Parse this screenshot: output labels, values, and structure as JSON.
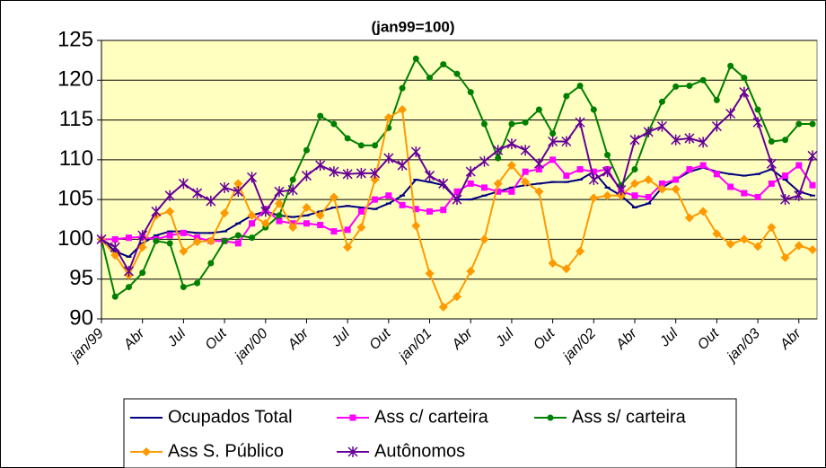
{
  "chart_data": {
    "type": "line",
    "subtitle": "(jan99=100)",
    "categories": [
      "jan/99",
      null,
      null,
      "Abr",
      null,
      null,
      "Jul",
      null,
      null,
      "Out",
      null,
      null,
      "jan/00",
      null,
      null,
      "Abr",
      null,
      null,
      "Jul",
      null,
      null,
      "Out",
      null,
      null,
      "jan/01",
      null,
      null,
      "Abr",
      null,
      null,
      "Jul",
      null,
      null,
      "Out",
      null,
      null,
      "jan/02",
      null,
      null,
      "Abr",
      null,
      null,
      "Jul",
      null,
      null,
      "Out",
      null,
      null,
      "jan/03",
      null,
      null,
      "Abr",
      null
    ],
    "ylim": [
      90,
      125
    ],
    "yticks": [
      90,
      95,
      100,
      105,
      110,
      115,
      120,
      125
    ],
    "grid": true,
    "series": [
      {
        "name": "Ocupados Total",
        "color": "#000080",
        "marker": "dash",
        "values": [
          100,
          98.5,
          97.8,
          99.5,
          100.5,
          101,
          101,
          100.8,
          100.8,
          101,
          102,
          103,
          103.5,
          103,
          102.8,
          103,
          103.5,
          104,
          104.2,
          104,
          103.8,
          104.5,
          105.5,
          107.5,
          107.2,
          106.8,
          105,
          105,
          105.5,
          106,
          106.5,
          106.8,
          107,
          107.2,
          107.2,
          107.5,
          108.5,
          106.5,
          105.5,
          104,
          104.5,
          106.5,
          107.5,
          108.5,
          109,
          108.5,
          108.2,
          108,
          108.2,
          108.8,
          107.5,
          106,
          105.5
        ]
      },
      {
        "name": "Ass c/ carteira",
        "color": "#ff00ff",
        "marker": "square",
        "values": [
          100,
          100,
          100.2,
          100.3,
          100,
          100.5,
          100.8,
          100.2,
          99.8,
          99.8,
          99.5,
          102,
          103.8,
          102.3,
          102,
          102,
          101.8,
          101,
          101.2,
          103.5,
          105,
          105.5,
          104.3,
          103.8,
          103.5,
          103.7,
          106,
          107,
          106.5,
          106,
          106,
          108.5,
          108.8,
          110,
          108,
          108.8,
          108.5,
          108.8,
          106,
          105.5,
          105.3,
          107,
          107.5,
          108.8,
          109.3,
          108.2,
          106.6,
          105.8,
          105.3,
          107,
          108,
          109.3,
          106.8
        ]
      },
      {
        "name": "Ass s/ carteira",
        "color": "#008000",
        "marker": "circle",
        "values": [
          100,
          92.8,
          94,
          95.8,
          99.8,
          99.5,
          94,
          94.5,
          97,
          99.8,
          100.5,
          100.2,
          101.5,
          103,
          107.5,
          111.2,
          115.5,
          114.5,
          112.7,
          111.8,
          111.8,
          114,
          119,
          122.7,
          120.3,
          122,
          120.8,
          118.5,
          114.5,
          110.2,
          114.5,
          114.7,
          116.3,
          113.3,
          118,
          119.3,
          116.3,
          110.6,
          106.8,
          108.8,
          113.5,
          117.3,
          119.2,
          119.3,
          120,
          117.5,
          121.8,
          120.3,
          116.3,
          112.3,
          112.5,
          114.5,
          114.5
        ]
      },
      {
        "name": "Ass S. Público",
        "color": "#ff9900",
        "marker": "diamond",
        "values": [
          100,
          98,
          95.5,
          99,
          103,
          103.5,
          98.5,
          99.7,
          99.8,
          103.3,
          107,
          103,
          102,
          104.5,
          101.5,
          104,
          103,
          105.3,
          99,
          101.5,
          107.5,
          115.3,
          116.3,
          101.7,
          95.7,
          91.5,
          92.8,
          96,
          100,
          107,
          109.3,
          107.2,
          106,
          97,
          96.3,
          98.5,
          105.2,
          105.5,
          105.5,
          107,
          107.5,
          106.3,
          106.3,
          102.7,
          103.5,
          100.7,
          99.4,
          100,
          99.1,
          101.5,
          97.7,
          99.2,
          98.7
        ]
      },
      {
        "name": "Autônomos",
        "color": "#660099",
        "marker": "star",
        "values": [
          100,
          99,
          96,
          100.5,
          103.5,
          105.5,
          107,
          105.8,
          104.8,
          106.5,
          106,
          107.8,
          103.5,
          106,
          106.2,
          108,
          109.3,
          108.5,
          108.2,
          108.3,
          108.3,
          110.2,
          109.3,
          111,
          108,
          107,
          105,
          108.5,
          109.8,
          111.2,
          112,
          111.2,
          109.5,
          112.3,
          112.3,
          114.7,
          107.5,
          108.5,
          106.2,
          112.5,
          113.5,
          114.2,
          112.5,
          112.7,
          112.2,
          114.2,
          115.8,
          118.5,
          114.7,
          109.5,
          105,
          105.5,
          110.5
        ]
      }
    ]
  }
}
